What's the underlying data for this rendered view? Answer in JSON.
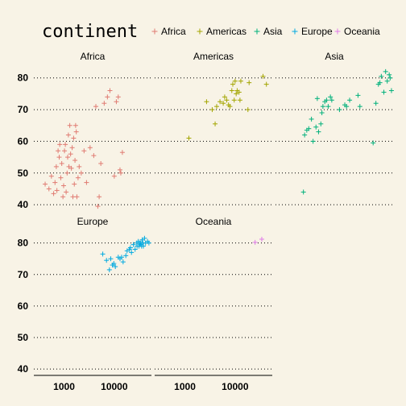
{
  "chart_data": {
    "type": "scatter",
    "legend": {
      "title": "continent",
      "position": "top"
    },
    "x_scale": "log10",
    "xlim": [
      250,
      55000
    ],
    "ylim": [
      38,
      84
    ],
    "x_ticks": [
      1000,
      10000
    ],
    "x_tick_labels": [
      "1000",
      "10000"
    ],
    "y_ticks": [
      40,
      50,
      60,
      70,
      80
    ],
    "y_tick_labels": [
      "40",
      "50",
      "60",
      "70",
      "80"
    ],
    "grid": "horizontal dotted",
    "panels": [
      {
        "name": "Africa",
        "color": "#e07b72",
        "points": [
          [
            420,
            46.5
          ],
          [
            500,
            45
          ],
          [
            560,
            49
          ],
          [
            620,
            43.5
          ],
          [
            660,
            47
          ],
          [
            700,
            52
          ],
          [
            720,
            44.5
          ],
          [
            760,
            57
          ],
          [
            800,
            55
          ],
          [
            820,
            59
          ],
          [
            860,
            48.5
          ],
          [
            900,
            53
          ],
          [
            950,
            42.5
          ],
          [
            980,
            46
          ],
          [
            1020,
            57
          ],
          [
            1060,
            59
          ],
          [
            1100,
            44
          ],
          [
            1150,
            50
          ],
          [
            1180,
            55
          ],
          [
            1220,
            62
          ],
          [
            1250,
            52
          ],
          [
            1300,
            65
          ],
          [
            1350,
            56
          ],
          [
            1400,
            51.5
          ],
          [
            1450,
            58
          ],
          [
            1500,
            42.5
          ],
          [
            1550,
            61
          ],
          [
            1600,
            46.5
          ],
          [
            1650,
            54
          ],
          [
            1700,
            65
          ],
          [
            1750,
            63
          ],
          [
            1800,
            42.5
          ],
          [
            1900,
            48.5
          ],
          [
            2000,
            52
          ],
          [
            2200,
            50
          ],
          [
            2500,
            57
          ],
          [
            2800,
            47
          ],
          [
            3300,
            58
          ],
          [
            3900,
            55.5
          ],
          [
            4300,
            71
          ],
          [
            4700,
            39.5
          ],
          [
            5000,
            42.5
          ],
          [
            5400,
            53
          ],
          [
            6300,
            72
          ],
          [
            7300,
            74
          ],
          [
            8200,
            76
          ],
          [
            10000,
            49
          ],
          [
            11000,
            72.5
          ],
          [
            12000,
            74
          ],
          [
            13000,
            51
          ],
          [
            13500,
            50
          ],
          [
            14500,
            56.5
          ]
        ]
      },
      {
        "name": "Americas",
        "color": "#a3a500",
        "points": [
          [
            1200,
            61
          ],
          [
            2700,
            72.5
          ],
          [
            3500,
            70
          ],
          [
            4000,
            65.5
          ],
          [
            4300,
            71
          ],
          [
            5000,
            72.5
          ],
          [
            5800,
            72
          ],
          [
            6200,
            74
          ],
          [
            6800,
            73
          ],
          [
            7400,
            71.5
          ],
          [
            7900,
            71
          ],
          [
            8600,
            76
          ],
          [
            9000,
            78
          ],
          [
            9600,
            73
          ],
          [
            10000,
            79
          ],
          [
            10500,
            75
          ],
          [
            11000,
            76
          ],
          [
            12000,
            75.5
          ],
          [
            12500,
            73
          ],
          [
            13000,
            79
          ],
          [
            18000,
            70
          ],
          [
            19000,
            78.5
          ],
          [
            36000,
            80.5
          ],
          [
            42000,
            78
          ]
        ]
      },
      {
        "name": "Asia",
        "color": "#00b07a",
        "points": [
          [
            900,
            44
          ],
          [
            950,
            62
          ],
          [
            1050,
            63.5
          ],
          [
            1150,
            64
          ],
          [
            1300,
            67
          ],
          [
            1400,
            60
          ],
          [
            1600,
            64.5
          ],
          [
            1700,
            73.5
          ],
          [
            1800,
            63
          ],
          [
            2000,
            65.5
          ],
          [
            2100,
            69
          ],
          [
            2200,
            71
          ],
          [
            2400,
            72.5
          ],
          [
            2600,
            73
          ],
          [
            2800,
            71
          ],
          [
            3100,
            74
          ],
          [
            3300,
            73
          ],
          [
            4700,
            70
          ],
          [
            6000,
            71.5
          ],
          [
            6500,
            71
          ],
          [
            7500,
            73
          ],
          [
            11000,
            74.5
          ],
          [
            12000,
            71
          ],
          [
            22000,
            59.5
          ],
          [
            25000,
            72
          ],
          [
            28000,
            78
          ],
          [
            30000,
            78.5
          ],
          [
            32000,
            80.5
          ],
          [
            36000,
            75.5
          ],
          [
            39000,
            82
          ],
          [
            42000,
            79
          ],
          [
            46000,
            81
          ],
          [
            48000,
            80
          ],
          [
            51000,
            76
          ]
        ]
      },
      {
        "name": "Europe",
        "color": "#00a9e0",
        "points": [
          [
            5900,
            76.5
          ],
          [
            7000,
            74.5
          ],
          [
            8000,
            71.5
          ],
          [
            8500,
            75
          ],
          [
            9200,
            73
          ],
          [
            9800,
            73.5
          ],
          [
            10500,
            72.5
          ],
          [
            12000,
            75.5
          ],
          [
            13000,
            75
          ],
          [
            14000,
            75.5
          ],
          [
            15000,
            74
          ],
          [
            17000,
            76
          ],
          [
            18000,
            77.5
          ],
          [
            20000,
            78
          ],
          [
            21000,
            78.5
          ],
          [
            22000,
            77
          ],
          [
            24000,
            79.5
          ],
          [
            26000,
            78
          ],
          [
            28000,
            80
          ],
          [
            28500,
            79
          ],
          [
            30000,
            80.5
          ],
          [
            31000,
            79
          ],
          [
            32000,
            80
          ],
          [
            33000,
            79.5
          ],
          [
            34000,
            80
          ],
          [
            35000,
            79
          ],
          [
            36000,
            81
          ],
          [
            37000,
            80
          ],
          [
            38000,
            79
          ],
          [
            40000,
            81.5
          ],
          [
            42000,
            80
          ],
          [
            46000,
            80.5
          ],
          [
            49000,
            80
          ]
        ]
      },
      {
        "name": "Oceania",
        "color": "#e07be8",
        "points": [
          [
            25000,
            80.2
          ],
          [
            34000,
            81.2
          ]
        ]
      }
    ]
  }
}
